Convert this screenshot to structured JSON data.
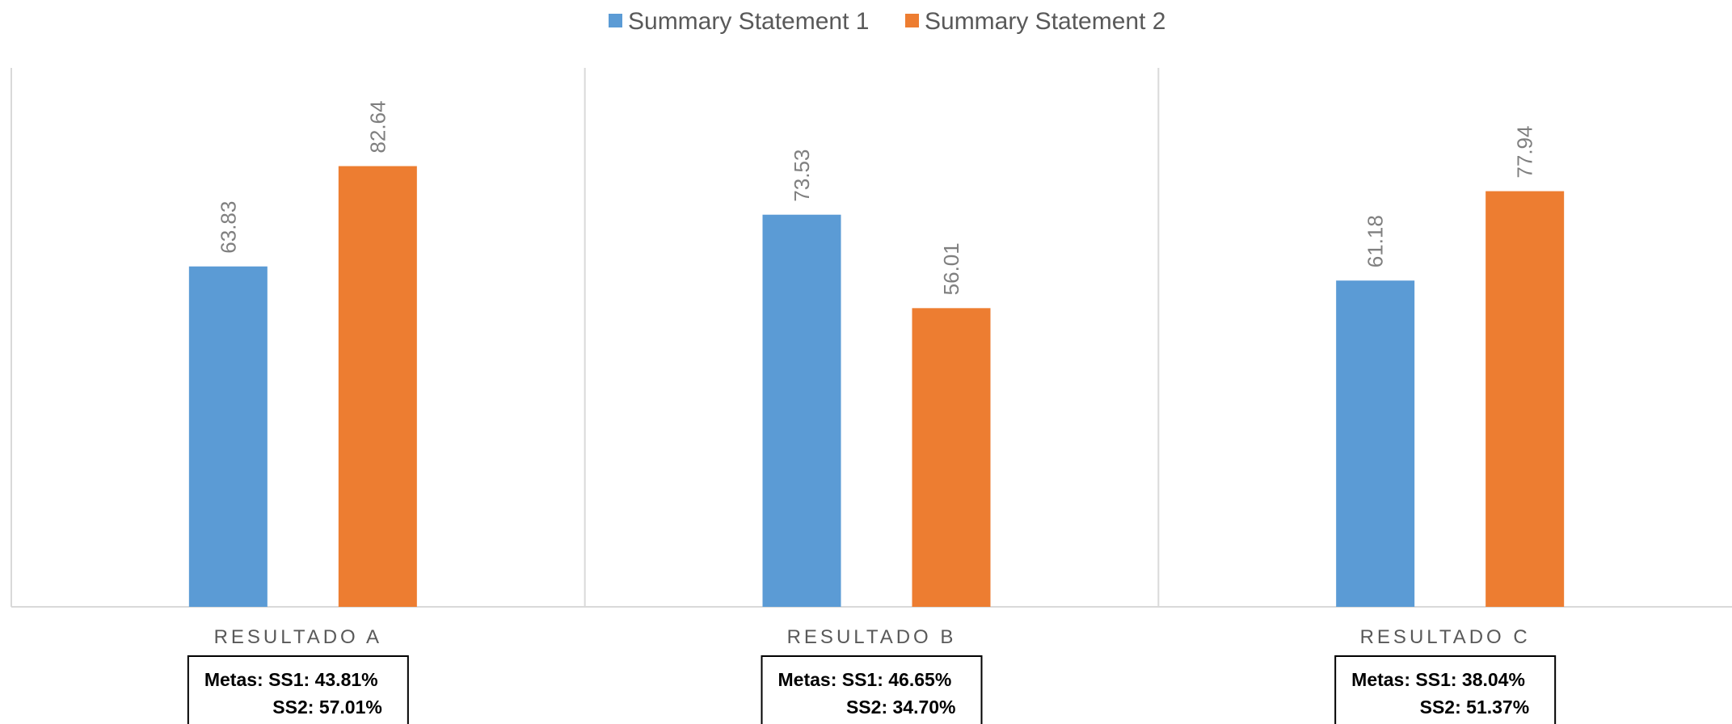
{
  "chart_data": {
    "type": "bar",
    "categories": [
      "RESULTADO A",
      "RESULTADO B",
      "RESULTADO C"
    ],
    "series": [
      {
        "name": "Summary Statement 1",
        "color": "#5b9bd5",
        "values": [
          63.83,
          73.53,
          61.18
        ]
      },
      {
        "name": "Summary Statement 2",
        "color": "#ed7d31",
        "values": [
          82.64,
          56.01,
          77.94
        ]
      }
    ],
    "ylim": [
      0,
      100
    ],
    "grid": false,
    "legend": "top-center",
    "goals": [
      {
        "line1": "Metas: SS1: 43.81%",
        "line2": "SS2: 57.01%"
      },
      {
        "line1": "Metas: SS1: 46.65%",
        "line2": "SS2: 34.70%"
      },
      {
        "line1": "Metas: SS1: 38.04%",
        "line2": "SS2: 51.37%"
      }
    ]
  }
}
